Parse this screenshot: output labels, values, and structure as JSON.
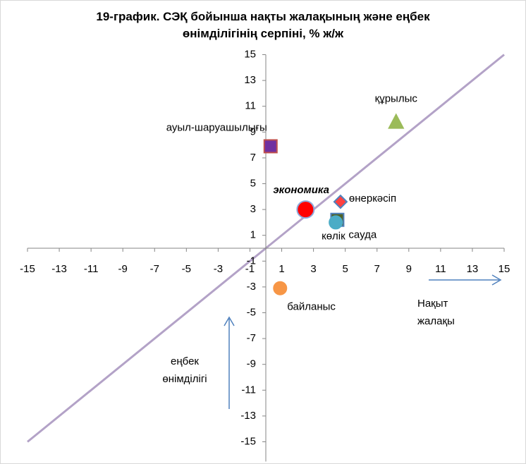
{
  "chart_data": {
    "type": "scatter",
    "title": "19-график. СЭҚ бойынша нақты жалақының және еңбек өнімділігінің серпіні, % ж/ж",
    "xlabel": "Нақыт жалақы",
    "ylabel": "еңбек өнімділігі",
    "xlim": [
      -15,
      15
    ],
    "ylim": [
      -15,
      15
    ],
    "xticks": [
      -15,
      -13,
      -11,
      -9,
      -7,
      -5,
      -3,
      -1,
      1,
      3,
      5,
      7,
      9,
      11,
      13,
      15
    ],
    "yticks": [
      -15,
      -13,
      -11,
      -9,
      -7,
      -5,
      -3,
      -1,
      1,
      3,
      5,
      7,
      9,
      11,
      13,
      15
    ],
    "diagonal_color": "#b3a2c7",
    "series": [
      {
        "name": "ауыл-шаруашылығы",
        "color": "#7030a0",
        "edge": "#c0504d",
        "marker": "square",
        "x": [
          0.3
        ],
        "values": [
          7.9
        ]
      },
      {
        "name": "құрылыс",
        "color": "#9bbb59",
        "edge": "#9bbb59",
        "marker": "triangle",
        "x": [
          8.2
        ],
        "values": [
          9.8
        ]
      },
      {
        "name": "экономика",
        "color": "#ff0000",
        "edge": "#8faadc",
        "marker": "circle-big",
        "x": [
          2.5
        ],
        "values": [
          3.0
        ]
      },
      {
        "name": "өнеркәсіп",
        "color": "#ff4040",
        "edge": "#4f81bd",
        "marker": "diamond",
        "x": [
          4.7
        ],
        "values": [
          3.6
        ]
      },
      {
        "name": "сауда",
        "color": "#4f6228",
        "edge": "#4f81bd",
        "marker": "square",
        "x": [
          4.5
        ],
        "values": [
          2.2
        ]
      },
      {
        "name": "көлік",
        "color": "#4bacc6",
        "edge": "#4bacc6",
        "marker": "circle",
        "x": [
          4.4
        ],
        "values": [
          2.0
        ]
      },
      {
        "name": "байланыс",
        "color": "#f79646",
        "edge": "#f79646",
        "marker": "circle",
        "x": [
          0.9
        ],
        "values": [
          -3.1
        ]
      }
    ]
  }
}
